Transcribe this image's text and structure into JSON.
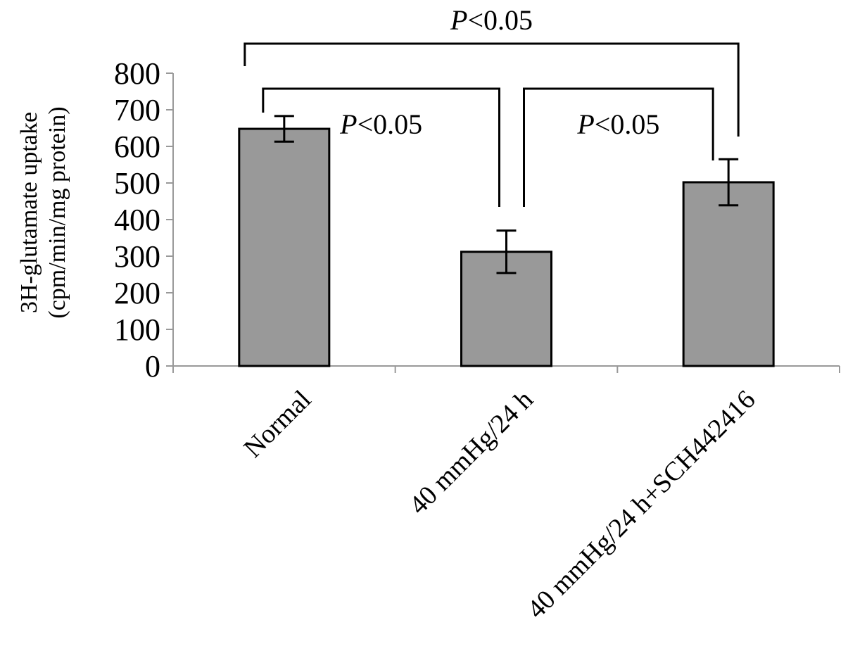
{
  "chart_data": {
    "type": "bar",
    "title": "",
    "xlabel": "",
    "ylabel_lines": [
      "3H-glutamate uptake",
      "(cpm/min/mg protein)"
    ],
    "categories": [
      "Normal",
      "40 mmHg/24 h",
      "40 mmHg/24 h+SCH442416"
    ],
    "values": [
      648,
      312,
      502
    ],
    "errors": [
      35,
      58,
      63
    ],
    "ylim": [
      0,
      800
    ],
    "yticks": [
      "0",
      "100",
      "200",
      "300",
      "400",
      "500",
      "600",
      "700",
      "800"
    ],
    "grid": false,
    "bar_color": "#999999",
    "significance": [
      {
        "from": 0,
        "to": 1,
        "label_italic": "P",
        "label_rest": "<0.05"
      },
      {
        "from": 1,
        "to": 2,
        "label_italic": "P",
        "label_rest": "<0.05"
      },
      {
        "from": 0,
        "to": 2,
        "label_italic": "P",
        "label_rest": "<0.05"
      }
    ]
  }
}
